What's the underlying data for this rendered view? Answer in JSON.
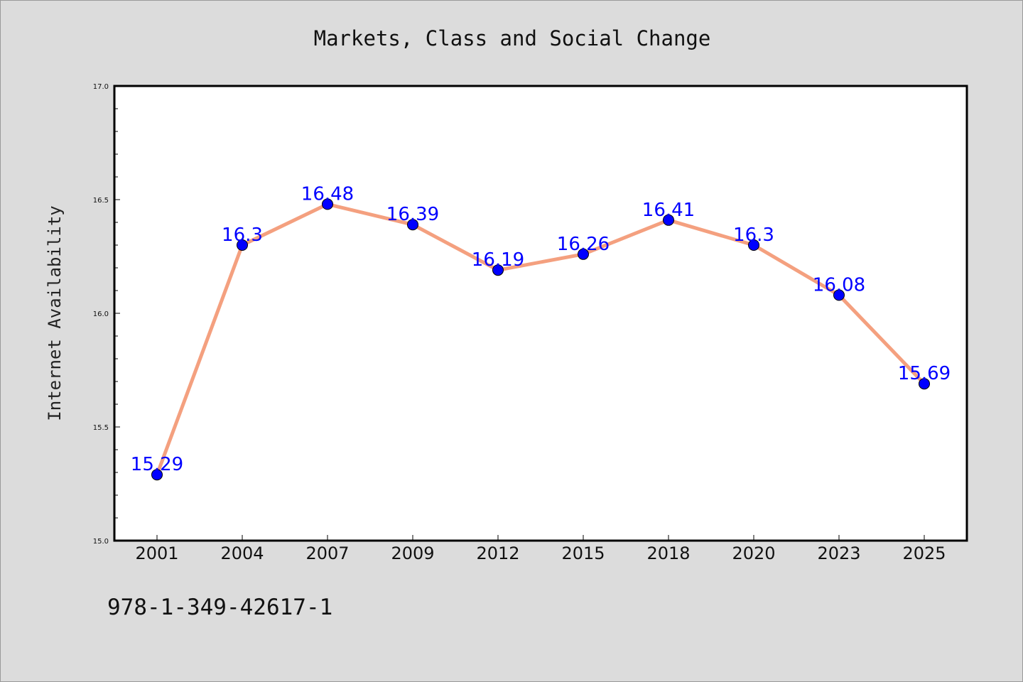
{
  "page": {
    "footer_code": "978-1-349-42617-1"
  },
  "colors": {
    "background": "#dcdcdc",
    "plot_background": "#ffffff",
    "line": "#f4a07f",
    "marker": "#0000ff",
    "data_label": "#0000ff"
  },
  "chart_data": {
    "type": "line",
    "title": "Markets, Class and Social Change",
    "xlabel": "",
    "ylabel": "Internet Availability",
    "categories": [
      "2001",
      "2004",
      "2007",
      "2009",
      "2012",
      "2015",
      "2018",
      "2020",
      "2023",
      "2025"
    ],
    "series": [
      {
        "values": [
          15.29,
          16.3,
          16.48,
          16.39,
          16.19,
          16.26,
          16.41,
          16.3,
          16.08,
          15.69
        ],
        "labels": [
          "15.29",
          "16.3",
          "16.48",
          "16.39",
          "16.19",
          "16.26",
          "16.41",
          "16.3",
          "16.08",
          "15.69"
        ]
      }
    ],
    "ylim": [
      15.0,
      17.0
    ],
    "yticks": [
      "15.0",
      "15.5",
      "16.0",
      "16.5",
      "17.0"
    ],
    "ytick_values": [
      15.0,
      15.5,
      16.0,
      16.5,
      17.0
    ],
    "minor_tick_step": 0.1,
    "grid": false,
    "legend": "none",
    "data_labels": true
  }
}
